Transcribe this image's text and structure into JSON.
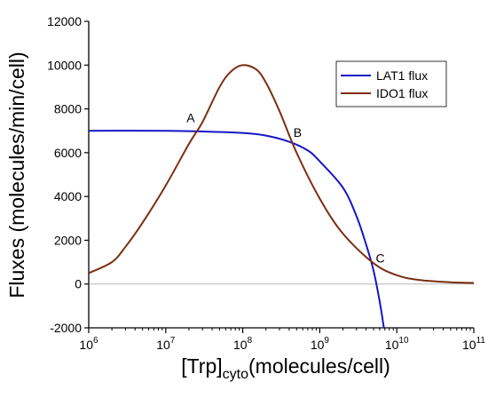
{
  "chart_data": {
    "type": "line",
    "title": "",
    "xlabel": {
      "main": "[Trp]",
      "sub": "cyto",
      "rest": "(molecules/cell)"
    },
    "ylabel": "Fluxes (molecules/min/cell)",
    "x_scale": "log",
    "xlim": [
      1000000,
      100000000000
    ],
    "ylim": [
      -2000,
      12000
    ],
    "x_ticks": [
      {
        "base": "10",
        "exp": "6",
        "value": 1000000
      },
      {
        "base": "10",
        "exp": "7",
        "value": 10000000
      },
      {
        "base": "10",
        "exp": "8",
        "value": 100000000
      },
      {
        "base": "10",
        "exp": "9",
        "value": 1000000000
      },
      {
        "base": "10",
        "exp": "10",
        "value": 10000000000
      },
      {
        "base": "10",
        "exp": "11",
        "value": 100000000000
      }
    ],
    "y_ticks": [
      "-2000",
      "0",
      "2000",
      "4000",
      "6000",
      "8000",
      "10000",
      "12000"
    ],
    "zero_line": true,
    "grid": false,
    "legend_position": "top-right",
    "series": [
      {
        "name": "LAT1 flux",
        "color": "#1515c8",
        "x": [
          1000000,
          10000000,
          30000000,
          100000000,
          200000000,
          400000000,
          700000000,
          1000000000,
          2000000000,
          3000000000,
          4000000000,
          5000000000,
          6000000000,
          6800000000
        ],
        "y": [
          7000,
          7000,
          6970,
          6900,
          6780,
          6500,
          6100,
          5600,
          4400,
          3100,
          1800,
          600,
          -800,
          -2000
        ]
      },
      {
        "name": "IDO1 flux",
        "color": "#7a2e10",
        "x": [
          1000000,
          2000000,
          3000000,
          5000000,
          10000000,
          20000000,
          30000000,
          50000000,
          70000000,
          100000000,
          150000000,
          200000000,
          300000000,
          500000000,
          1000000000,
          2000000000,
          5000000000,
          10000000000,
          20000000000,
          50000000000,
          100000000000
        ],
        "y": [
          500,
          1000,
          1700,
          2800,
          4500,
          6400,
          7400,
          9000,
          9700,
          10000,
          9800,
          9200,
          7900,
          6000,
          3900,
          2300,
          950,
          400,
          180,
          80,
          50
        ]
      }
    ],
    "annotations": [
      {
        "label": "A",
        "x": 27000000,
        "y": 6980
      },
      {
        "label": "B",
        "x": 410000000,
        "y": 6400
      },
      {
        "label": "C",
        "x": 4800000000,
        "y": 900
      }
    ]
  }
}
